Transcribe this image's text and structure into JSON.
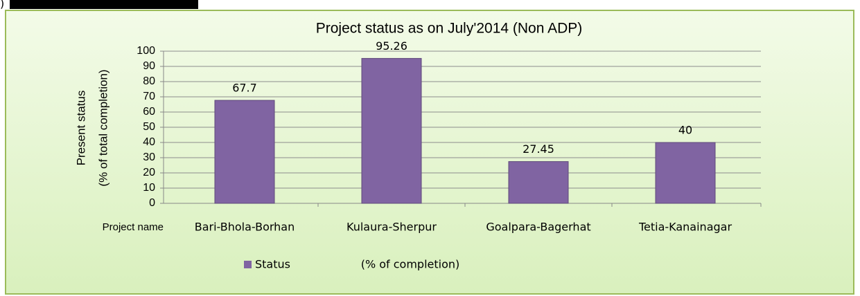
{
  "prefix": ")",
  "chart_data": {
    "type": "bar",
    "title": "Project status as on  July'2014 (Non ADP)",
    "ylabel": [
      "Present status",
      "(% of total completion)"
    ],
    "xlabel": "Project name",
    "categories": [
      "Bari-Bhola-Borhan",
      "Kulaura-Sherpur",
      "Goalpara-Bagerhat",
      "Tetia-Kanainagar"
    ],
    "series": [
      {
        "name": "Status                    (% of completion)",
        "color": "#8064a2",
        "values": [
          67.7,
          95.26,
          27.45,
          40
        ]
      }
    ],
    "ylim": [
      0,
      100
    ],
    "yticks": [
      0,
      10,
      20,
      30,
      40,
      50,
      60,
      70,
      80,
      90,
      100
    ],
    "grid": true,
    "legend": "bottom"
  }
}
